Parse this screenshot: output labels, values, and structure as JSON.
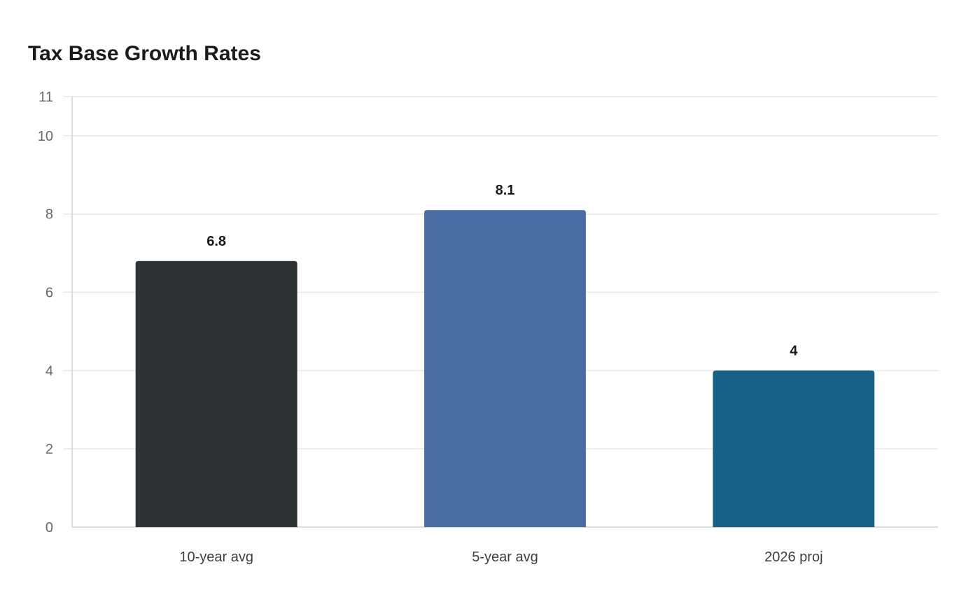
{
  "chart_data": {
    "type": "bar",
    "title": "Tax Base Growth Rates",
    "xlabel": "",
    "ylabel": "",
    "categories": [
      "10-year avg",
      "5-year avg",
      "2026 proj"
    ],
    "values": [
      6.8,
      8.1,
      4
    ],
    "value_labels": [
      "6.8",
      "8.1",
      "4"
    ],
    "colors": [
      "#2e3436",
      "#4a6ea3",
      "#176087"
    ],
    "ylim": [
      0,
      11
    ],
    "yticks": [
      0,
      2,
      4,
      6,
      8,
      10,
      11
    ],
    "grid": true,
    "legend": "none"
  }
}
